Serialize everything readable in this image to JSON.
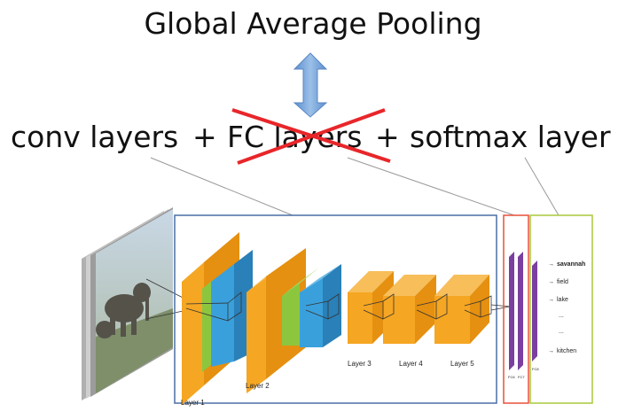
{
  "title": "Global Average Pooling",
  "formula": {
    "conv": "conv layers",
    "plus1": "+",
    "fc": "FC layers",
    "plus2": "+",
    "softmax": "softmax layer"
  },
  "layer_labels": [
    "Layer 1",
    "Layer 2",
    "Layer 3",
    "Layer 4",
    "Layer 5"
  ],
  "fc_labels": [
    "FC6",
    "FC7",
    "FC8"
  ],
  "outputs": [
    "savannah",
    "field",
    "lake",
    "...",
    "...",
    "kitchen"
  ],
  "colors": {
    "orange": "#f5a623",
    "green": "#8cc63f",
    "blue": "#3aa0dc",
    "purple": "#7b3fa0",
    "conv_box": "#4a6fa5",
    "fc_box": "#e8503a",
    "softmax_box": "#a8c83a",
    "arrow": "#6d9ed6",
    "cross": "#e8262a"
  }
}
